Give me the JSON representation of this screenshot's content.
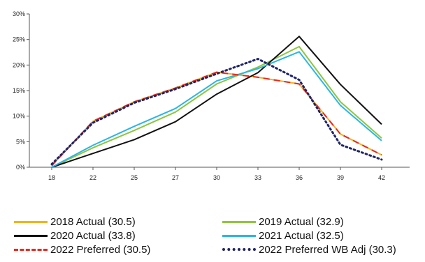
{
  "chart_data": {
    "type": "line",
    "x": [
      18,
      22,
      25,
      27,
      30,
      33,
      36,
      39,
      42
    ],
    "x_tick_labels": [
      "18",
      "22",
      "25",
      "27",
      "30",
      "33",
      "36",
      "39",
      "42"
    ],
    "ylim": [
      0,
      30
    ],
    "y_tick_labels": [
      "0%",
      "5%",
      "10%",
      "15%",
      "20%",
      "25%",
      "30%"
    ],
    "title": "",
    "xlabel": "",
    "ylabel": "",
    "grid": false,
    "legend_position": "bottom",
    "series": [
      {
        "name": "2018 Actual (30.5)",
        "color": "#F5B21B",
        "style": "solid",
        "values": [
          0.3,
          9.0,
          12.8,
          15.5,
          18.6,
          17.6,
          16.3,
          6.5,
          2.4
        ]
      },
      {
        "name": "2019 Actual (32.9)",
        "color": "#8DC63F",
        "style": "solid",
        "values": [
          0.0,
          3.8,
          7.2,
          10.8,
          16.3,
          19.6,
          23.6,
          12.8,
          5.7
        ]
      },
      {
        "name": "2020 Actual (33.8)",
        "color": "#111111",
        "style": "solid",
        "values": [
          0.0,
          2.7,
          5.4,
          8.9,
          14.3,
          18.5,
          25.6,
          16.2,
          8.4
        ]
      },
      {
        "name": "2021 Actual (32.5)",
        "color": "#29B6E8",
        "style": "solid",
        "values": [
          0.0,
          4.3,
          8.0,
          11.5,
          16.9,
          19.3,
          22.6,
          12.1,
          5.2
        ]
      },
      {
        "name": "2022 Preferred (30.5)",
        "color": "#E8281E",
        "style": "dashed",
        "values": [
          0.3,
          9.0,
          12.8,
          15.5,
          18.6,
          17.6,
          16.3,
          6.5,
          2.4
        ]
      },
      {
        "name": "2022 Preferred WB Adj (30.3)",
        "color": "#1E2466",
        "style": "dotted",
        "values": [
          0.6,
          8.7,
          12.6,
          15.3,
          18.3,
          21.2,
          17.1,
          4.4,
          1.5
        ]
      }
    ]
  }
}
